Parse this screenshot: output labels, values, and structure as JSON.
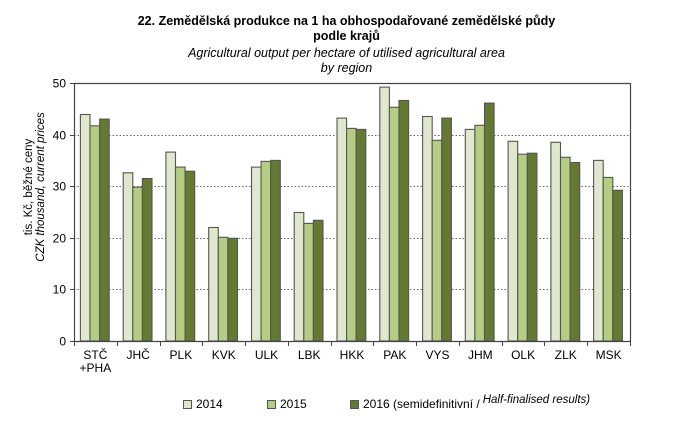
{
  "chart_data": {
    "type": "bar",
    "title": "22. Zemědělská produkce na 1 ha obhospodařované zemědělské půdy podle krajů",
    "title_line1": "22. Zemědělská  produkce  na 1 ha obhospodařované  zemědělské půdy",
    "title_line2": "podle krajů",
    "subtitle_line1": "Agricultural output per hectare of utilised agricultural  area",
    "subtitle_line2": "by region",
    "xlabel": "",
    "ylabel_line1": "tis. Kč, běžné ceny",
    "ylabel_line2": "CZK thousand, current prices",
    "ylim": [
      0,
      50
    ],
    "yticks": [
      0,
      10,
      20,
      30,
      40,
      50
    ],
    "grid": "horizontal dotted",
    "legend_position": "bottom",
    "categories": [
      "STČ\n+PHA",
      "JHČ",
      "PLK",
      "KVK",
      "ULK",
      "LBK",
      "HKK",
      "PAK",
      "VYS",
      "JHM",
      "OLK",
      "ZLK",
      "MSK"
    ],
    "category_lines": [
      [
        "STČ",
        "+PHA"
      ],
      [
        "JHČ"
      ],
      [
        "PLK"
      ],
      [
        "KVK"
      ],
      [
        "ULK"
      ],
      [
        "LBK"
      ],
      [
        "HKK"
      ],
      [
        "PAK"
      ],
      [
        "VYS"
      ],
      [
        "JHM"
      ],
      [
        "OLK"
      ],
      [
        "ZLK"
      ],
      [
        "MSK"
      ]
    ],
    "series": [
      {
        "name": "2014",
        "color": "#dfe8cc",
        "values": [
          43.9,
          32.6,
          36.6,
          22.0,
          33.7,
          24.9,
          43.2,
          49.2,
          43.5,
          41.0,
          38.7,
          38.5,
          35.0
        ]
      },
      {
        "name": "2015",
        "color": "#b5cd82",
        "values": [
          41.7,
          29.8,
          33.7,
          20.1,
          34.8,
          22.8,
          41.2,
          45.3,
          38.9,
          41.8,
          36.2,
          35.6,
          31.7
        ]
      },
      {
        "name": "2016 (semidefinitivní / Half-finalised results)",
        "color": "#647a32",
        "values": [
          43.0,
          31.5,
          32.9,
          19.9,
          35.0,
          23.4,
          41.0,
          46.6,
          43.2,
          46.1,
          36.4,
          34.6,
          29.2
        ]
      }
    ]
  },
  "legend": {
    "items": [
      {
        "label": "2014",
        "color": "#dfe8cc"
      },
      {
        "label": "2015",
        "color": "#b5cd82"
      },
      {
        "label": "2016 (semidefinitivní /",
        "label_italic": "Half-finalised results)",
        "color": "#647a32"
      }
    ]
  },
  "colors": {
    "bar_border": "#555555",
    "axis": "#444444",
    "grid": "#666666"
  }
}
